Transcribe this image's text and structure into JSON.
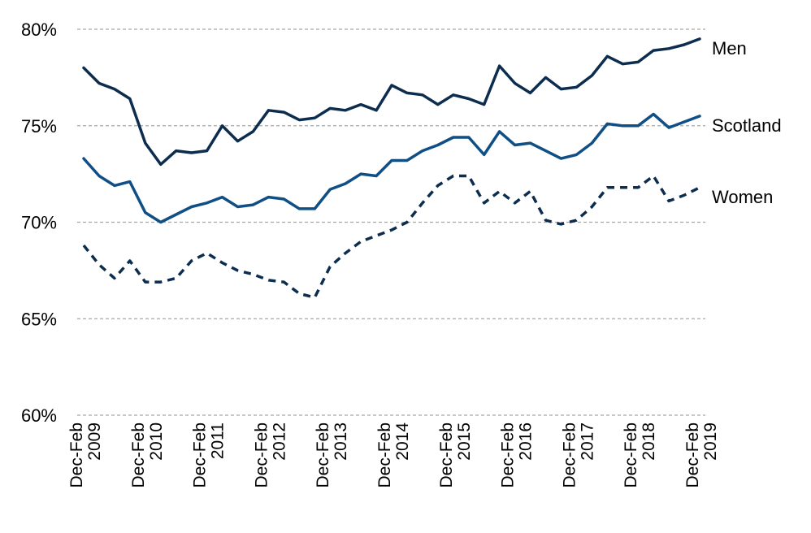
{
  "chart_data": {
    "type": "line",
    "title": "",
    "xlabel": "",
    "ylabel": "",
    "y_axis": {
      "min": 60,
      "max": 80,
      "ticks": [
        60,
        65,
        70,
        75,
        80
      ],
      "tick_labels": [
        "60%",
        "65%",
        "70%",
        "75%",
        "80%"
      ]
    },
    "x_tick_labels": [
      [
        "Dec-Feb",
        "2009"
      ],
      [
        "Dec-Feb",
        "2010"
      ],
      [
        "Dec-Feb",
        "2011"
      ],
      [
        "Dec-Feb",
        "2012"
      ],
      [
        "Dec-Feb",
        "2013"
      ],
      [
        "Dec-Feb",
        "2014"
      ],
      [
        "Dec-Feb",
        "2015"
      ],
      [
        "Dec-Feb",
        "2016"
      ],
      [
        "Dec-Feb",
        "2017"
      ],
      [
        "Dec-Feb",
        "2018"
      ],
      [
        "Dec-Feb",
        "2019"
      ]
    ],
    "periods_per_tick": 4,
    "grid": true,
    "series": [
      {
        "name": "Men",
        "color": "#0d2d4f",
        "dashed": false,
        "values": [
          78.0,
          77.2,
          76.9,
          76.4,
          74.1,
          73.0,
          73.7,
          73.6,
          73.7,
          75.0,
          74.2,
          74.7,
          75.8,
          75.7,
          75.3,
          75.4,
          75.9,
          75.8,
          76.1,
          75.8,
          77.1,
          76.7,
          76.6,
          76.1,
          76.6,
          76.4,
          76.1,
          78.1,
          77.2,
          76.7,
          77.5,
          76.9,
          77.0,
          77.6,
          78.6,
          78.2,
          78.3,
          78.9,
          79.0,
          79.2,
          79.5
        ]
      },
      {
        "name": "Scotland",
        "color": "#0f4f86",
        "dashed": false,
        "values": [
          73.3,
          72.4,
          71.9,
          72.1,
          70.5,
          70.0,
          70.4,
          70.8,
          71.0,
          71.3,
          70.8,
          70.9,
          71.3,
          71.2,
          70.7,
          70.7,
          71.7,
          72.0,
          72.5,
          72.4,
          73.2,
          73.2,
          73.7,
          74.0,
          74.4,
          74.4,
          73.5,
          74.7,
          74.0,
          74.1,
          73.7,
          73.3,
          73.5,
          74.1,
          75.1,
          75.0,
          75.0,
          75.6,
          74.9,
          75.2,
          75.5
        ]
      },
      {
        "name": "Women",
        "color": "#0d2d4f",
        "dashed": true,
        "values": [
          68.8,
          67.8,
          67.1,
          68.0,
          66.9,
          66.9,
          67.1,
          68.0,
          68.4,
          67.9,
          67.5,
          67.3,
          67.0,
          66.9,
          66.3,
          66.1,
          67.7,
          68.4,
          69.0,
          69.3,
          69.6,
          70.0,
          71.0,
          71.9,
          72.4,
          72.4,
          71.0,
          71.6,
          71.0,
          71.6,
          70.1,
          69.9,
          70.1,
          70.8,
          71.8,
          71.8,
          71.8,
          72.4,
          71.1,
          71.4,
          71.8
        ]
      }
    ]
  }
}
